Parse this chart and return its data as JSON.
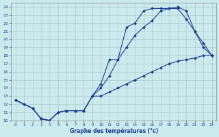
{
  "bg_color": "#cce9ee",
  "line_color": "#1a3a8c",
  "grid_color": "#aacccc",
  "xlabel": "Graphe des températures (°c)",
  "xlim": [
    -0.5,
    23.5
  ],
  "ylim": [
    10,
    24.5
  ],
  "yticks": [
    10,
    11,
    12,
    13,
    14,
    15,
    16,
    17,
    18,
    19,
    20,
    21,
    22,
    23,
    24
  ],
  "xticks": [
    0,
    1,
    2,
    3,
    4,
    5,
    6,
    7,
    8,
    9,
    10,
    11,
    12,
    13,
    14,
    15,
    16,
    17,
    18,
    19,
    20,
    21,
    22,
    23
  ],
  "line1_x": [
    0,
    1,
    2,
    3,
    4,
    5,
    6,
    7,
    8,
    9,
    10,
    11,
    12,
    13,
    14,
    15,
    16,
    17,
    18,
    19,
    20,
    21,
    22,
    23
  ],
  "line1_y": [
    12.5,
    12.0,
    11.5,
    10.2,
    10.0,
    11.0,
    11.2,
    11.2,
    11.2,
    13.0,
    14.0,
    15.5,
    17.5,
    19.0,
    20.5,
    21.5,
    22.3,
    23.5,
    23.8,
    24.0,
    23.5,
    21.0,
    19.5,
    18.0
  ],
  "line2_x": [
    0,
    1,
    2,
    3,
    4,
    5,
    6,
    7,
    8,
    9,
    10,
    11,
    12,
    13,
    14,
    15,
    16,
    17,
    18,
    19,
    20,
    21,
    22,
    23
  ],
  "line2_y": [
    12.5,
    12.0,
    11.5,
    10.2,
    10.0,
    11.0,
    11.2,
    11.2,
    11.2,
    13.0,
    14.5,
    17.5,
    17.5,
    21.5,
    22.0,
    23.5,
    23.8,
    23.8,
    23.8,
    23.8,
    22.5,
    21.0,
    19.0,
    18.0
  ],
  "line3_x": [
    0,
    1,
    2,
    3,
    4,
    5,
    6,
    7,
    8,
    9,
    10,
    11,
    12,
    13,
    14,
    15,
    16,
    17,
    18,
    19,
    20,
    21,
    22,
    23
  ],
  "line3_y": [
    12.5,
    12.0,
    11.5,
    10.2,
    10.0,
    11.0,
    11.2,
    11.2,
    11.2,
    13.0,
    13.0,
    13.5,
    14.0,
    14.5,
    15.0,
    15.5,
    16.0,
    16.5,
    17.0,
    17.3,
    17.5,
    17.7,
    18.0,
    18.0
  ]
}
